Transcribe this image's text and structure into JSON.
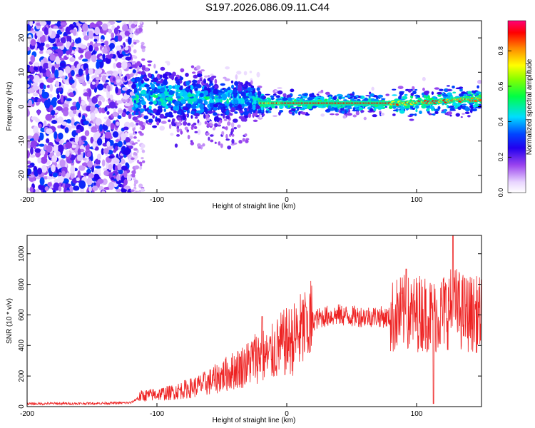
{
  "title": "S197.2026.086.09.11.C44",
  "colors": {
    "snr_line": "#ee2222",
    "axis": "#000000",
    "background": "#ffffff",
    "colormap": [
      "#ffffff",
      "#cc99ff",
      "#6600cc",
      "#0000ff",
      "#00ffff",
      "#00ff00",
      "#ffff00",
      "#ff8800",
      "#ff0000",
      "#ff0099"
    ]
  },
  "chart_data": [
    {
      "type": "heatmap",
      "title": "",
      "xlabel": "Height of straight line (km)",
      "ylabel": "Frequency (Hz)",
      "xlim": [
        -200,
        150
      ],
      "ylim": [
        -25,
        25
      ],
      "xticks": [
        -200,
        -100,
        0,
        100
      ],
      "yticks": [
        -20,
        -10,
        0,
        10,
        20
      ],
      "colorbar": {
        "label": "Normalized spectral amplitude",
        "range": [
          0.0,
          0.97
        ],
        "ticks": [
          0.0,
          0.2,
          0.4,
          0.6,
          0.8
        ]
      },
      "features": [
        {
          "name": "noise_region",
          "x_range": [
            -200,
            -120
          ],
          "freq_range": [
            -25,
            25
          ],
          "amplitude": "0.1-0.35"
        },
        {
          "name": "onset_band",
          "x_range": [
            -120,
            -20
          ],
          "freq_center": 3,
          "freq_spread": 6,
          "amplitude": "0.2-0.5"
        },
        {
          "name": "carrier_line",
          "x_range": [
            -20,
            150
          ],
          "freq_start": 1,
          "freq_end": 2,
          "amplitude": "0.8-0.95"
        }
      ]
    },
    {
      "type": "line",
      "title": "",
      "xlabel": "Height of straight line (km)",
      "ylabel": "SNR (10 * v/v)",
      "xlim": [
        -200,
        150
      ],
      "ylim": [
        0,
        1120
      ],
      "xticks": [
        -200,
        -100,
        0,
        100
      ],
      "yticks": [
        0,
        200,
        400,
        600,
        800,
        1000
      ],
      "series": [
        {
          "name": "SNR",
          "x": [
            -200,
            -180,
            -160,
            -140,
            -120,
            -112,
            -100,
            -90,
            -80,
            -70,
            -60,
            -50,
            -40,
            -30,
            -25,
            -20,
            -15,
            -10,
            -5,
            0,
            5,
            10,
            15,
            20,
            25,
            30,
            40,
            50,
            60,
            70,
            80,
            85,
            90,
            95,
            100,
            105,
            110,
            115,
            120,
            125,
            130,
            135,
            140,
            150
          ],
          "y": [
            18,
            20,
            20,
            22,
            25,
            70,
            80,
            90,
            110,
            130,
            160,
            200,
            240,
            280,
            320,
            340,
            320,
            360,
            400,
            420,
            440,
            480,
            520,
            560,
            580,
            590,
            600,
            590,
            590,
            590,
            580,
            600,
            610,
            600,
            610,
            620,
            600,
            590,
            620,
            640,
            650,
            620,
            610,
            600
          ]
        }
      ],
      "spike_peaks": [
        {
          "x": -19,
          "y": 590
        },
        {
          "x": 15,
          "y": 650
        },
        {
          "x": 92,
          "y": 900
        },
        {
          "x": 113,
          "y": 20
        },
        {
          "x": 128,
          "y": 1120
        }
      ]
    }
  ]
}
